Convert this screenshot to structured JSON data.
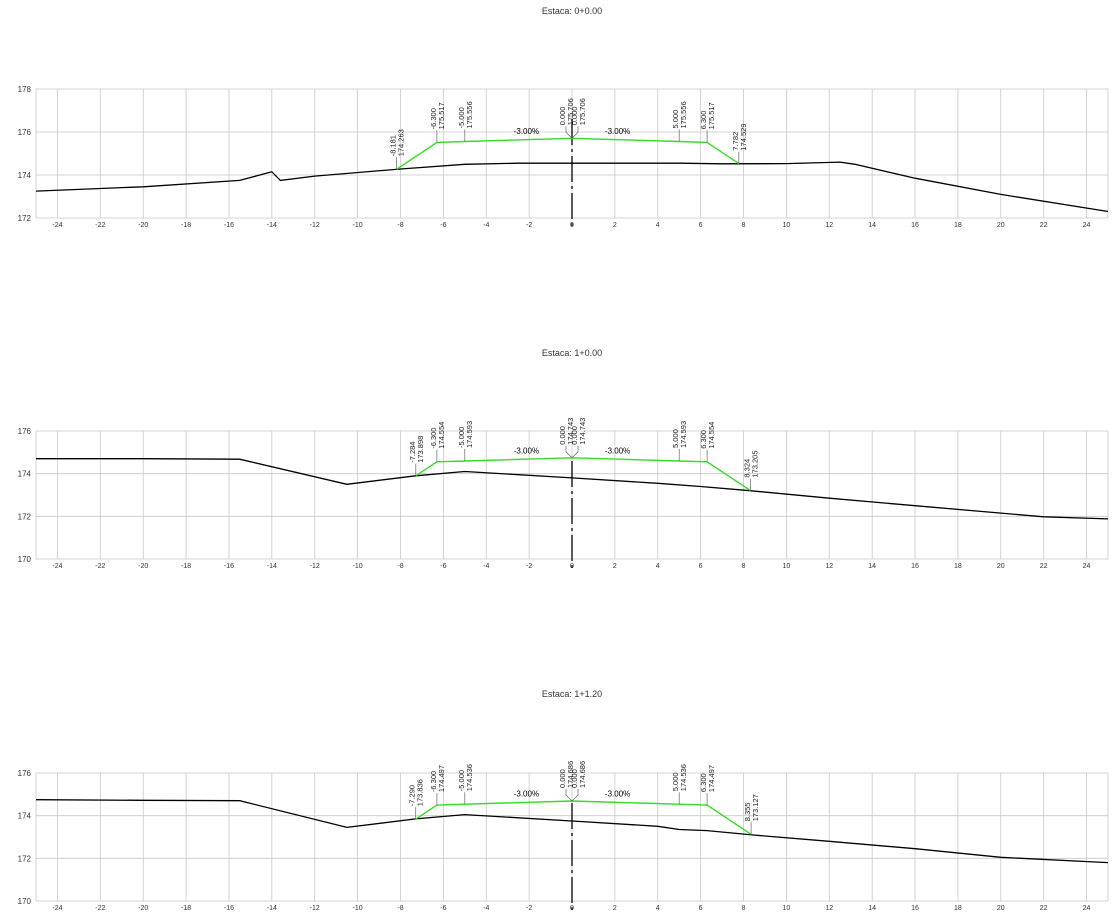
{
  "sections": [
    {
      "title": "Estaca: 0+0.00",
      "ylim": [
        172,
        178
      ],
      "yticks": [
        172,
        174,
        176,
        178
      ],
      "xlim": [
        -25,
        25
      ],
      "xticks": [
        -24,
        -22,
        -20,
        -18,
        -16,
        -14,
        -12,
        -10,
        -8,
        -6,
        -4,
        -2,
        0,
        2,
        4,
        6,
        8,
        10,
        12,
        14,
        16,
        18,
        20,
        22,
        24
      ],
      "terrain": [
        [
          -25,
          173.25
        ],
        [
          -20,
          173.45
        ],
        [
          -15.5,
          173.75
        ],
        [
          -14.2,
          174.1
        ],
        [
          -14.0,
          174.15
        ],
        [
          -13.6,
          173.75
        ],
        [
          -12,
          173.95
        ],
        [
          -8,
          174.28
        ],
        [
          -5,
          174.5
        ],
        [
          -2.5,
          174.55
        ],
        [
          0,
          174.55
        ],
        [
          5,
          174.55
        ],
        [
          7,
          174.52
        ],
        [
          10,
          174.53
        ],
        [
          12.5,
          174.6
        ],
        [
          13.2,
          174.5
        ],
        [
          16,
          173.85
        ],
        [
          20,
          173.1
        ],
        [
          25,
          172.3
        ]
      ],
      "design": [
        [
          -8.181,
          174.263
        ],
        [
          -6.3,
          175.517
        ],
        [
          -5.0,
          175.556
        ],
        [
          0,
          175.706
        ],
        [
          5.0,
          175.556
        ],
        [
          6.3,
          175.517
        ],
        [
          7.782,
          174.529
        ]
      ],
      "labels": [
        {
          "station": "-8.181",
          "elev": "174.263"
        },
        {
          "station": "-6.300",
          "elev": "175.517"
        },
        {
          "station": "-5.000",
          "elev": "175.556"
        },
        {
          "station": "0.000",
          "elev": "175.706"
        },
        {
          "station": "0.000",
          "elev": "175.706"
        },
        {
          "station": "5.000",
          "elev": "175.556"
        },
        {
          "station": "6.300",
          "elev": "175.517"
        },
        {
          "station": "7.782",
          "elev": "174.529"
        }
      ],
      "slopes": [
        "-3.00%",
        "-3.00%"
      ]
    },
    {
      "title": "Estaca: 1+0.00",
      "ylim": [
        170,
        176
      ],
      "yticks": [
        170,
        172,
        174,
        176
      ],
      "xlim": [
        -25,
        25
      ],
      "xticks": [
        -24,
        -22,
        -20,
        -18,
        -16,
        -14,
        -12,
        -10,
        -8,
        -6,
        -4,
        -2,
        0,
        2,
        4,
        6,
        8,
        10,
        12,
        14,
        16,
        18,
        20,
        22,
        24
      ],
      "terrain": [
        [
          -25,
          174.7
        ],
        [
          -20,
          174.7
        ],
        [
          -15.5,
          174.68
        ],
        [
          -10.5,
          173.5
        ],
        [
          -7.3,
          173.9
        ],
        [
          -5,
          174.1
        ],
        [
          0,
          173.8
        ],
        [
          4,
          173.55
        ],
        [
          6,
          173.4
        ],
        [
          8.3,
          173.2
        ],
        [
          12,
          172.85
        ],
        [
          16,
          172.5
        ],
        [
          22,
          171.98
        ],
        [
          25,
          171.88
        ]
      ],
      "design": [
        [
          -7.284,
          173.898
        ],
        [
          -6.3,
          174.554
        ],
        [
          -5.0,
          174.593
        ],
        [
          0,
          174.743
        ],
        [
          5.0,
          174.593
        ],
        [
          6.3,
          174.554
        ],
        [
          8.324,
          173.205
        ]
      ],
      "labels": [
        {
          "station": "-7.284",
          "elev": "173.898"
        },
        {
          "station": "-6.300",
          "elev": "174.554"
        },
        {
          "station": "-5.000",
          "elev": "174.593"
        },
        {
          "station": "0.000",
          "elev": "174.743"
        },
        {
          "station": "0.000",
          "elev": "174.743"
        },
        {
          "station": "5.000",
          "elev": "174.593"
        },
        {
          "station": "6.300",
          "elev": "174.554"
        },
        {
          "station": "8.324",
          "elev": "173.205"
        }
      ],
      "slopes": [
        "-3.00%",
        "-3.00%"
      ]
    },
    {
      "title": "Estaca: 1+1.20",
      "ylim": [
        170,
        176
      ],
      "yticks": [
        170,
        172,
        174,
        176
      ],
      "xlim": [
        -25,
        25
      ],
      "xticks": [
        -24,
        -22,
        -20,
        -18,
        -16,
        -14,
        -12,
        -10,
        -8,
        -6,
        -4,
        -2,
        0,
        2,
        4,
        6,
        8,
        10,
        12,
        14,
        16,
        18,
        20,
        22,
        24
      ],
      "terrain": [
        [
          -25,
          174.75
        ],
        [
          -20,
          174.72
        ],
        [
          -15.5,
          174.7
        ],
        [
          -10.5,
          173.45
        ],
        [
          -7.3,
          173.85
        ],
        [
          -5,
          174.05
        ],
        [
          0,
          173.75
        ],
        [
          4,
          173.5
        ],
        [
          5,
          173.35
        ],
        [
          6.3,
          173.3
        ],
        [
          8.4,
          173.1
        ],
        [
          12,
          172.8
        ],
        [
          16,
          172.45
        ],
        [
          20,
          172.05
        ],
        [
          25,
          171.8
        ]
      ],
      "design": [
        [
          -7.29,
          173.836
        ],
        [
          -6.3,
          174.497
        ],
        [
          -5.0,
          174.536
        ],
        [
          0,
          174.686
        ],
        [
          5.0,
          174.536
        ],
        [
          6.3,
          174.497
        ],
        [
          8.355,
          173.127
        ]
      ],
      "labels": [
        {
          "station": "-7.290",
          "elev": "173.836"
        },
        {
          "station": "-6.300",
          "elev": "174.497"
        },
        {
          "station": "-5.000",
          "elev": "174.536"
        },
        {
          "station": "0.000",
          "elev": "174.686"
        },
        {
          "station": "0.000",
          "elev": "174.686"
        },
        {
          "station": "5.000",
          "elev": "174.536"
        },
        {
          "station": "6.300",
          "elev": "174.497"
        },
        {
          "station": "8.355",
          "elev": "173.127"
        }
      ],
      "slopes": [
        "-3.00%",
        "-3.00%"
      ]
    }
  ],
  "colors": {
    "grid": "#c8c8c8",
    "terrain": "#000000",
    "design": "#33dd22",
    "axis_text": "#333333"
  }
}
